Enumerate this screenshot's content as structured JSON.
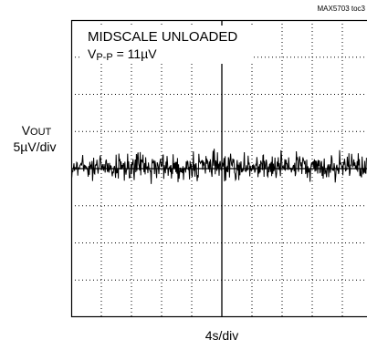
{
  "chart_data": {
    "type": "scope",
    "tag": "MAX5703 toc3",
    "annotation_1": "MIDSCALE UNLOADED",
    "annotation_2": {
      "main": "V",
      "sub": "P-P",
      "rest": " = 11µV"
    },
    "y_label": {
      "main": "V",
      "sub": "OUT"
    },
    "y_scale": "5µV/div",
    "x_scale": "4s/div"
  }
}
